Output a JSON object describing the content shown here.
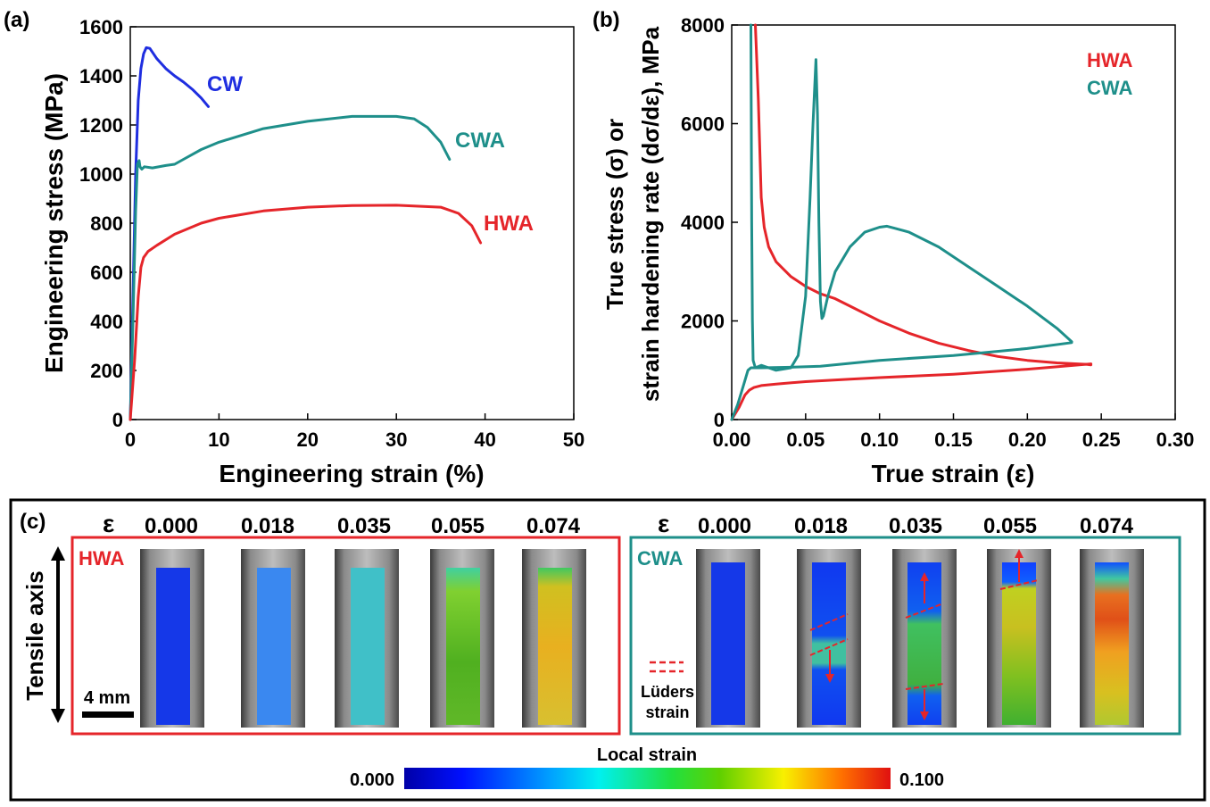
{
  "panel_labels": {
    "a": "(a)",
    "b": "(b)",
    "c": "(c)"
  },
  "chart_data": [
    {
      "type": "line",
      "panel": "(a)",
      "xlabel": "Engineering strain (%)",
      "ylabel": "Engineering stress (MPa)",
      "xlim": [
        0,
        50
      ],
      "ylim": [
        0,
        1600
      ],
      "xticks": [
        "0",
        "10",
        "20",
        "30",
        "40",
        "50"
      ],
      "yticks": [
        "0",
        "200",
        "400",
        "600",
        "800",
        "1000",
        "1200",
        "1400",
        "1600"
      ],
      "grid": false,
      "series": [
        {
          "name": "CW",
          "color": "#1f2ee0",
          "x": [
            0,
            0.3,
            0.6,
            0.9,
            1.2,
            1.5,
            1.8,
            2.2,
            3.0,
            4.0,
            5.0,
            6.0,
            7.0,
            8.0,
            8.8
          ],
          "y": [
            0,
            500,
            1000,
            1300,
            1430,
            1490,
            1515,
            1512,
            1470,
            1430,
            1400,
            1375,
            1345,
            1310,
            1275
          ]
        },
        {
          "name": "CWA",
          "color": "#1e8f8a",
          "x": [
            0,
            0.3,
            0.6,
            0.8,
            1.0,
            1.1,
            1.3,
            1.6,
            2.5,
            4.0,
            5.0,
            6.0,
            8.0,
            10,
            15,
            20,
            25,
            30,
            32,
            33.5,
            35,
            36
          ],
          "y": [
            0,
            400,
            850,
            1040,
            1055,
            1030,
            1020,
            1030,
            1025,
            1035,
            1040,
            1060,
            1100,
            1130,
            1185,
            1215,
            1235,
            1235,
            1225,
            1190,
            1130,
            1060
          ]
        },
        {
          "name": "HWA",
          "color": "#e5252a",
          "x": [
            0,
            0.5,
            0.9,
            1.2,
            1.5,
            2.0,
            3.0,
            5.0,
            8.0,
            10,
            15,
            20,
            25,
            30,
            35,
            37,
            38.5,
            39.5
          ],
          "y": [
            0,
            250,
            500,
            620,
            660,
            685,
            710,
            755,
            800,
            820,
            850,
            865,
            872,
            873,
            865,
            840,
            790,
            720
          ]
        }
      ]
    },
    {
      "type": "line",
      "panel": "(b)",
      "xlabel": "True strain (ε)",
      "ylabel_line1": "True stress (σ) or",
      "ylabel_line2": "strain hardening rate (dσ/dε), MPa",
      "xlim": [
        0,
        0.3
      ],
      "ylim": [
        0,
        8000
      ],
      "xticks": [
        "0.00",
        "0.05",
        "0.10",
        "0.15",
        "0.20",
        "0.25",
        "0.30"
      ],
      "yticks": [
        "0",
        "2000",
        "4000",
        "6000",
        "8000"
      ],
      "grid": false,
      "legend": [
        {
          "name": "HWA",
          "color": "#e5252a"
        },
        {
          "name": "CWA",
          "color": "#1e8f8a"
        }
      ],
      "legend_position": "top-right",
      "series": [
        {
          "name": "HWA stress",
          "color": "#e5252a",
          "x": [
            0,
            0.005,
            0.009,
            0.012,
            0.015,
            0.02,
            0.03,
            0.05,
            0.08,
            0.1,
            0.15,
            0.2,
            0.243
          ],
          "y": [
            0,
            250,
            500,
            600,
            650,
            690,
            720,
            770,
            820,
            850,
            920,
            1020,
            1130
          ]
        },
        {
          "name": "HWA hardening rate",
          "color": "#e5252a",
          "x": [
            0.016,
            0.018,
            0.02,
            0.022,
            0.025,
            0.03,
            0.04,
            0.05,
            0.06,
            0.07,
            0.08,
            0.09,
            0.1,
            0.12,
            0.14,
            0.16,
            0.18,
            0.2,
            0.22,
            0.24,
            0.243
          ],
          "y": [
            8000,
            6500,
            4500,
            3900,
            3500,
            3200,
            2900,
            2700,
            2550,
            2450,
            2300,
            2150,
            2000,
            1750,
            1550,
            1400,
            1280,
            1200,
            1150,
            1120,
            1110
          ]
        },
        {
          "name": "CWA stress",
          "color": "#1e8f8a",
          "x": [
            0,
            0.004,
            0.008,
            0.011,
            0.013,
            0.02,
            0.04,
            0.06,
            0.08,
            0.1,
            0.15,
            0.2,
            0.23
          ],
          "y": [
            0,
            300,
            700,
            1000,
            1050,
            1050,
            1060,
            1080,
            1140,
            1200,
            1300,
            1440,
            1560
          ]
        },
        {
          "name": "CWA hardening rate",
          "color": "#1e8f8a",
          "x": [
            0.013,
            0.0135,
            0.014,
            0.0145,
            0.016,
            0.02,
            0.025,
            0.03,
            0.04,
            0.045,
            0.05,
            0.053,
            0.055,
            0.057,
            0.058,
            0.059,
            0.06,
            0.061,
            0.062,
            0.065,
            0.07,
            0.08,
            0.09,
            0.1,
            0.105,
            0.11,
            0.12,
            0.14,
            0.16,
            0.18,
            0.2,
            0.22,
            0.23
          ],
          "y": [
            8000,
            4000,
            2000,
            1200,
            1050,
            1100,
            1050,
            1000,
            1050,
            1300,
            2500,
            4500,
            6000,
            7300,
            6200,
            4000,
            2400,
            2050,
            2100,
            2500,
            3000,
            3500,
            3800,
            3900,
            3920,
            3880,
            3800,
            3500,
            3100,
            2700,
            2300,
            1850,
            1580
          ]
        }
      ]
    }
  ],
  "panel_c": {
    "epsilon_symbol": "ε",
    "strain_values": [
      "0.000",
      "0.018",
      "0.035",
      "0.055",
      "0.074"
    ],
    "tensile_axis_label": "Tensile axis",
    "scale_bar_label": "4 mm",
    "hwa": {
      "label": "HWA",
      "color": "#e5252a",
      "strain_levels": [
        0.0,
        0.018,
        0.035,
        0.055,
        0.074
      ]
    },
    "cwa": {
      "label": "CWA",
      "color": "#1e8f8a",
      "luders_line1": "Lüders",
      "luders_line2": "strain"
    },
    "colorbar": {
      "title": "Local strain",
      "min_label": "0.000",
      "max_label": "0.100",
      "min": 0.0,
      "max": 0.1
    }
  }
}
